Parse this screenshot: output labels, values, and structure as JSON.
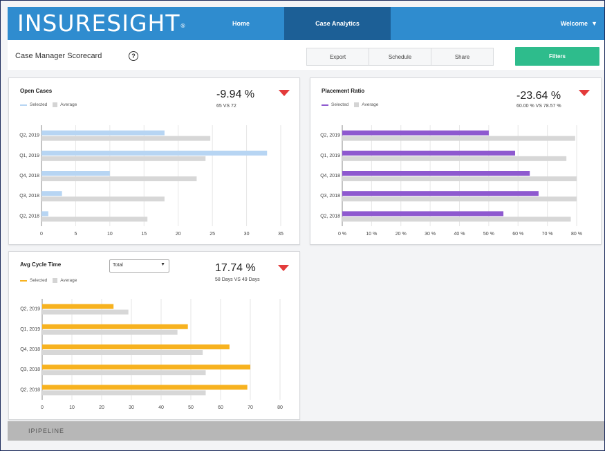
{
  "header": {
    "logo": "INSURESIGHT",
    "logo_mark": "®",
    "nav": [
      {
        "label": "Home"
      },
      {
        "label": "Case Analytics"
      }
    ],
    "welcome": "Welcome",
    "welcome_caret": "▼"
  },
  "subheader": {
    "title": "Case Manager Scorecard",
    "help": "?",
    "buttons": [
      {
        "label": "Export"
      },
      {
        "label": "Schedule"
      },
      {
        "label": "Share"
      }
    ],
    "filters": "Filters"
  },
  "legend": {
    "selected": "Selected",
    "average": "Average"
  },
  "cards": {
    "open_cases": {
      "title": "Open Cases",
      "metric": "-9.94 %",
      "sub": "65 VS 72"
    },
    "placement_ratio": {
      "title": "Placement Ratio",
      "metric": "-23.64 %",
      "sub": "60.00 % VS 78.57 %"
    },
    "avg_cycle_time": {
      "title": "Avg Cycle Time",
      "metric": "17.74 %",
      "sub": "58 Days VS 49 Days",
      "select_value": "Total"
    }
  },
  "colors": {
    "open": "#b7d5f3",
    "placement": "#8e59cf",
    "cycle": "#f7b21f",
    "average": "#d7d7d7",
    "down": "#e33b3b"
  },
  "footer": {
    "logo": "IPIPELINE"
  },
  "chart_data": [
    {
      "type": "bar",
      "title": "Open Cases",
      "categories": [
        "Q2, 2019",
        "Q1, 2019",
        "Q4, 2018",
        "Q3, 2018",
        "Q2, 2018"
      ],
      "series": [
        {
          "name": "Selected",
          "values": [
            18,
            33,
            10,
            3,
            1
          ]
        },
        {
          "name": "Average",
          "values": [
            24.7,
            24,
            22.7,
            18,
            15.5
          ]
        }
      ],
      "ticks": [
        "0",
        "5",
        "10",
        "15",
        "20",
        "25",
        "30",
        "35"
      ],
      "xlim": [
        0,
        35
      ]
    },
    {
      "type": "bar",
      "title": "Placement Ratio",
      "categories": [
        "Q2, 2019",
        "Q1, 2019",
        "Q4, 2018",
        "Q3, 2018",
        "Q2, 2018"
      ],
      "series": [
        {
          "name": "Selected",
          "values": [
            50,
            59,
            64,
            67,
            55
          ]
        },
        {
          "name": "Average",
          "values": [
            79.5,
            76.5,
            80,
            80,
            78
          ]
        }
      ],
      "ticks": [
        "0 %",
        "10 %",
        "20 %",
        "30 %",
        "40 %",
        "50 %",
        "60 %",
        "70 %",
        "80 %"
      ],
      "xlim": [
        0,
        80
      ]
    },
    {
      "type": "bar",
      "title": "Avg Cycle Time",
      "categories": [
        "Q2, 2019",
        "Q1, 2019",
        "Q4, 2018",
        "Q3, 2018",
        "Q2, 2018"
      ],
      "series": [
        {
          "name": "Selected",
          "values": [
            24,
            49,
            63,
            70,
            69
          ]
        },
        {
          "name": "Average",
          "values": [
            29,
            45.5,
            54,
            55,
            55
          ]
        }
      ],
      "ticks": [
        "0",
        "10",
        "20",
        "30",
        "40",
        "50",
        "60",
        "70",
        "80"
      ],
      "xlim": [
        0,
        80
      ]
    }
  ]
}
